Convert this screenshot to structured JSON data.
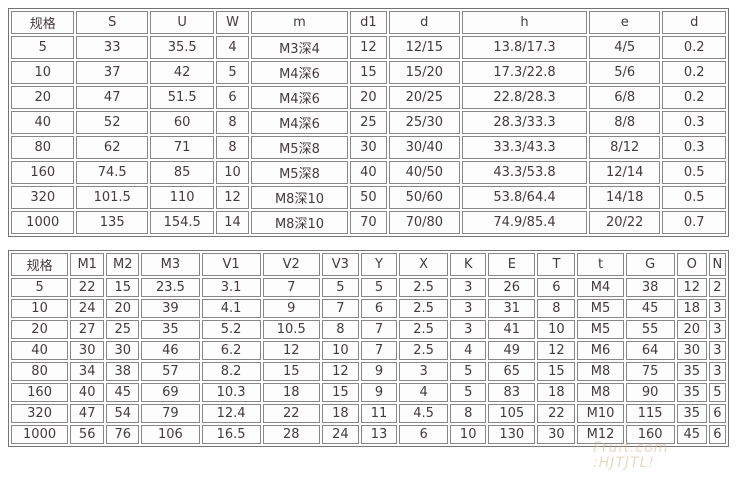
{
  "colors": {
    "page_background": "#ffffff",
    "table_outer_border": "#737373",
    "cell_border": "#878787",
    "cell_background": "#fdfdfd",
    "text": "#453a3d",
    "watermark": "#cfa883"
  },
  "tables": {
    "spec_table_1": {
      "headers": [
        "规格",
        "S",
        "U",
        "W",
        "m",
        "d1",
        "d",
        "h",
        "e",
        "d"
      ],
      "rows": [
        [
          "5",
          "33",
          "35.5",
          "4",
          "M3深4",
          "12",
          "12/15",
          "13.8/17.3",
          "4/5",
          "0.2"
        ],
        [
          "10",
          "37",
          "42",
          "5",
          "M4深6",
          "15",
          "15/20",
          "17.3/22.8",
          "5/6",
          "0.2"
        ],
        [
          "20",
          "47",
          "51.5",
          "6",
          "M4深6",
          "20",
          "20/25",
          "22.8/28.3",
          "6/8",
          "0.2"
        ],
        [
          "40",
          "52",
          "60",
          "8",
          "M4深6",
          "25",
          "25/30",
          "28.3/33.3",
          "8/8",
          "0.3"
        ],
        [
          "80",
          "62",
          "71",
          "8",
          "M5深8",
          "30",
          "30/40",
          "33.3/43.3",
          "8/12",
          "0.3"
        ],
        [
          "160",
          "74.5",
          "85",
          "10",
          "M5深8",
          "40",
          "40/50",
          "43.3/53.8",
          "12/14",
          "0.5"
        ],
        [
          "320",
          "101.5",
          "110",
          "12",
          "M8深10",
          "50",
          "50/60",
          "53.8/64.4",
          "14/18",
          "0.5"
        ],
        [
          "1000",
          "135",
          "154.5",
          "14",
          "M8深10",
          "70",
          "70/80",
          "74.9/85.4",
          "20/22",
          "0.7"
        ]
      ]
    },
    "spec_table_2": {
      "headers": [
        "规格",
        "M1",
        "M2",
        "M3",
        "V1",
        "V2",
        "V3",
        "Y",
        "X",
        "K",
        "E",
        "T",
        "t",
        "G",
        "O",
        "N"
      ],
      "rows": [
        [
          "5",
          "22",
          "15",
          "23.5",
          "3.1",
          "7",
          "5",
          "5",
          "2.5",
          "3",
          "26",
          "6",
          "M4",
          "38",
          "12",
          "2"
        ],
        [
          "10",
          "24",
          "20",
          "39",
          "4.1",
          "9",
          "7",
          "6",
          "2.5",
          "3",
          "31",
          "8",
          "M5",
          "45",
          "18",
          "3"
        ],
        [
          "20",
          "27",
          "25",
          "35",
          "5.2",
          "10.5",
          "8",
          "7",
          "2.5",
          "3",
          "41",
          "10",
          "M5",
          "55",
          "20",
          "3"
        ],
        [
          "40",
          "30",
          "30",
          "46",
          "6.2",
          "12",
          "10",
          "7",
          "2.5",
          "4",
          "49",
          "12",
          "M6",
          "64",
          "30",
          "3"
        ],
        [
          "80",
          "34",
          "38",
          "57",
          "8.2",
          "15",
          "12",
          "9",
          "3",
          "5",
          "65",
          "15",
          "M8",
          "75",
          "35",
          "3"
        ],
        [
          "160",
          "40",
          "45",
          "69",
          "10.3",
          "18",
          "15",
          "9",
          "4",
          "5",
          "83",
          "18",
          "M8",
          "90",
          "35",
          "5"
        ],
        [
          "320",
          "47",
          "54",
          "79",
          "12.4",
          "22",
          "18",
          "11",
          "4.5",
          "8",
          "105",
          "22",
          "M10",
          "115",
          "35",
          "6"
        ],
        [
          "1000",
          "56",
          "76",
          "106",
          "16.5",
          "28",
          "24",
          "13",
          "6",
          "10",
          "130",
          "30",
          "M12",
          "160",
          "45",
          "6"
        ]
      ]
    }
  },
  "watermark": {
    "line1": "Fruit.com",
    "line2": ":HJTJTL!"
  }
}
